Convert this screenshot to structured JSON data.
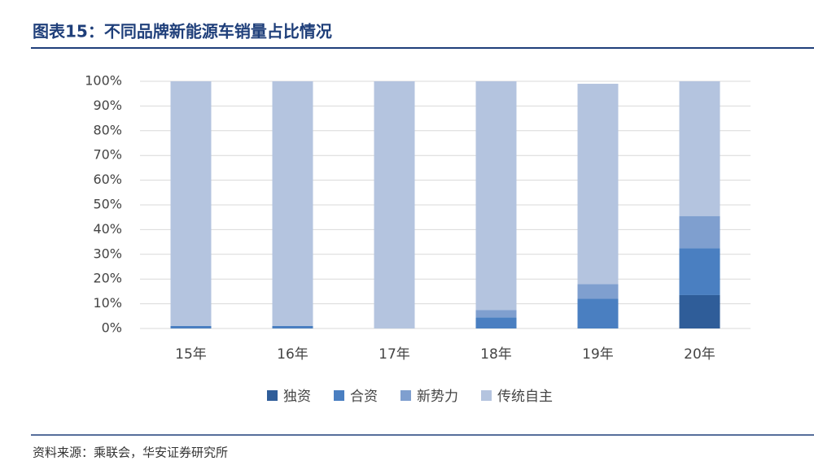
{
  "chart_data": {
    "type": "stacked_bar",
    "title": "图表15：不同品牌新能源车销量占比情况",
    "categories": [
      "15年",
      "16年",
      "17年",
      "18年",
      "19年",
      "20年"
    ],
    "series": [
      {
        "name": "独资",
        "color": "#2f5d99",
        "values": [
          0,
          0,
          0,
          0,
          0,
          13.5
        ]
      },
      {
        "name": "合资",
        "color": "#4a7fc1",
        "values": [
          1,
          1,
          0,
          4.5,
          12,
          19
        ]
      },
      {
        "name": "新势力",
        "color": "#7f9fcf",
        "values": [
          0,
          0,
          0,
          3,
          6,
          13
        ]
      },
      {
        "name": "传统自主",
        "color": "#b4c4df",
        "values": [
          99,
          99,
          100,
          92.5,
          81,
          54.5
        ]
      }
    ],
    "ylim": [
      0,
      100
    ],
    "yticks": [
      {
        "value": 0,
        "label": "0%"
      },
      {
        "value": 10,
        "label": "10%"
      },
      {
        "value": 20,
        "label": "20%"
      },
      {
        "value": 30,
        "label": "30%"
      },
      {
        "value": 40,
        "label": "40%"
      },
      {
        "value": 50,
        "label": "50%"
      },
      {
        "value": 60,
        "label": "60%"
      },
      {
        "value": 70,
        "label": "70%"
      },
      {
        "value": 80,
        "label": "80%"
      },
      {
        "value": 90,
        "label": "90%"
      },
      {
        "value": 100,
        "label": "100%"
      }
    ],
    "grid": true
  },
  "source": "资料来源：乘联会，华安证券研究所"
}
